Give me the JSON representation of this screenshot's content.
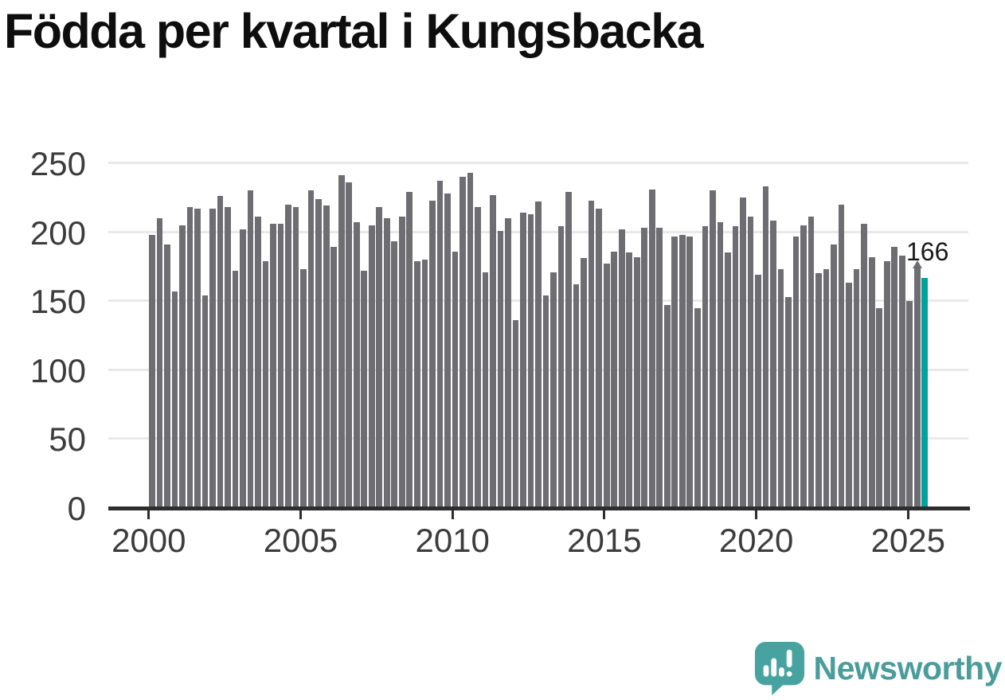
{
  "title": "Födda per kvartal i Kungsbacka",
  "annotation": {
    "label": "166"
  },
  "logo": {
    "text": "Newsworthy"
  },
  "colors": {
    "bar": "#6e6d72",
    "highlight": "#00a29d",
    "grid": "#e9e9e9",
    "axis": "#2d2d2d",
    "tick_label": "#3c3c3c",
    "title": "#0e0e0e",
    "annotation": "#191919",
    "logo_bubble": "#47a3a0",
    "logo_text": "#4a9d9b"
  },
  "chart_data": {
    "type": "bar",
    "title": "Födda per kvartal i Kungsbacka",
    "ylabel": "",
    "xlabel": "",
    "ylim": [
      0,
      250
    ],
    "y_ticks": [
      250,
      200,
      150,
      100,
      50,
      0
    ],
    "x_ticks": [
      2000,
      2005,
      2010,
      2015,
      2020,
      2025
    ],
    "grid": "horizontal",
    "legend": "none",
    "highlight_last": true,
    "last_value_label": "166",
    "categories": [
      "2000 Q1",
      "2000 Q2",
      "2000 Q3",
      "2000 Q4",
      "2001 Q1",
      "2001 Q2",
      "2001 Q3",
      "2001 Q4",
      "2002 Q1",
      "2002 Q2",
      "2002 Q3",
      "2002 Q4",
      "2003 Q1",
      "2003 Q2",
      "2003 Q3",
      "2003 Q4",
      "2004 Q1",
      "2004 Q2",
      "2004 Q3",
      "2004 Q4",
      "2005 Q1",
      "2005 Q2",
      "2005 Q3",
      "2005 Q4",
      "2006 Q1",
      "2006 Q2",
      "2006 Q3",
      "2006 Q4",
      "2007 Q1",
      "2007 Q2",
      "2007 Q3",
      "2007 Q4",
      "2008 Q1",
      "2008 Q2",
      "2008 Q3",
      "2008 Q4",
      "2009 Q1",
      "2009 Q2",
      "2009 Q3",
      "2009 Q4",
      "2010 Q1",
      "2010 Q2",
      "2010 Q3",
      "2010 Q4",
      "2011 Q1",
      "2011 Q2",
      "2011 Q3",
      "2011 Q4",
      "2012 Q1",
      "2012 Q2",
      "2012 Q3",
      "2012 Q4",
      "2013 Q1",
      "2013 Q2",
      "2013 Q3",
      "2013 Q4",
      "2014 Q1",
      "2014 Q2",
      "2014 Q3",
      "2014 Q4",
      "2015 Q1",
      "2015 Q2",
      "2015 Q3",
      "2015 Q4",
      "2016 Q1",
      "2016 Q2",
      "2016 Q3",
      "2016 Q4",
      "2017 Q1",
      "2017 Q2",
      "2017 Q3",
      "2017 Q4",
      "2018 Q1",
      "2018 Q2",
      "2018 Q3",
      "2018 Q4",
      "2019 Q1",
      "2019 Q2",
      "2019 Q3",
      "2019 Q4",
      "2020 Q1",
      "2020 Q2",
      "2020 Q3",
      "2020 Q4",
      "2021 Q1",
      "2021 Q2",
      "2021 Q3",
      "2021 Q4",
      "2022 Q1",
      "2022 Q2",
      "2022 Q3",
      "2022 Q4",
      "2023 Q1",
      "2023 Q2",
      "2023 Q3",
      "2023 Q4",
      "2024 Q1",
      "2024 Q2",
      "2024 Q3",
      "2024 Q4",
      "2025 Q1",
      "2025 Q2",
      "2025 Q3"
    ],
    "values": [
      197,
      209,
      190,
      156,
      204,
      217,
      216,
      153,
      216,
      225,
      217,
      171,
      201,
      229,
      210,
      178,
      205,
      205,
      219,
      217,
      172,
      229,
      223,
      218,
      188,
      240,
      235,
      206,
      171,
      204,
      217,
      209,
      192,
      210,
      228,
      178,
      179,
      222,
      236,
      227,
      185,
      239,
      242,
      217,
      170,
      226,
      200,
      209,
      135,
      213,
      212,
      221,
      153,
      170,
      203,
      228,
      161,
      180,
      222,
      216,
      176,
      185,
      201,
      184,
      181,
      202,
      230,
      202,
      146,
      196,
      197,
      196,
      144,
      203,
      229,
      206,
      184,
      203,
      224,
      210,
      168,
      232,
      207,
      172,
      152,
      196,
      204,
      210,
      169,
      172,
      190,
      219,
      162,
      172,
      205,
      181,
      144,
      178,
      188,
      182,
      149,
      173,
      166
    ]
  }
}
